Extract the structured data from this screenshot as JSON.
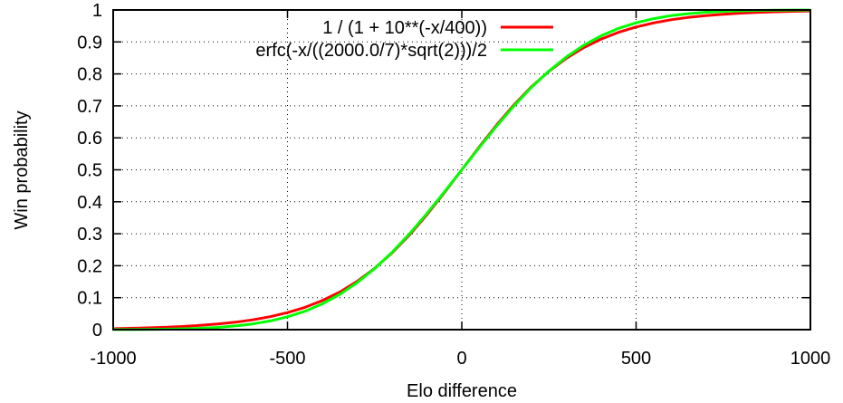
{
  "chart_data": {
    "type": "line",
    "title": "",
    "xlabel": "Elo difference",
    "ylabel": "Win probability",
    "xlim": [
      -1000,
      1000
    ],
    "ylim": [
      0,
      1
    ],
    "grid": true,
    "legend_position": "top-right",
    "x_ticks": [
      "-1000",
      "-500",
      "0",
      "500",
      "1000"
    ],
    "x_tick_values": [
      -1000,
      -500,
      0,
      500,
      1000
    ],
    "y_ticks": [
      "0",
      "0.1",
      "0.2",
      "0.3",
      "0.4",
      "0.5",
      "0.6",
      "0.7",
      "0.8",
      "0.9",
      "1"
    ],
    "y_tick_values": [
      0,
      0.1,
      0.2,
      0.3,
      0.4,
      0.5,
      0.6,
      0.7,
      0.8,
      0.9,
      1
    ],
    "x": [
      -1000,
      -950,
      -900,
      -850,
      -800,
      -750,
      -700,
      -650,
      -600,
      -550,
      -500,
      -450,
      -400,
      -350,
      -300,
      -250,
      -200,
      -150,
      -100,
      -50,
      0,
      50,
      100,
      150,
      200,
      250,
      300,
      350,
      400,
      450,
      500,
      550,
      600,
      650,
      700,
      750,
      800,
      850,
      900,
      950,
      1000
    ],
    "series": [
      {
        "name": "1 / (1 + 10**(-x/400))",
        "color": "#ff0000",
        "values": [
          0.0032,
          0.0042,
          0.0056,
          0.0074,
          0.0099,
          0.0132,
          0.0175,
          0.0232,
          0.0307,
          0.0405,
          0.0532,
          0.0698,
          0.0909,
          0.1177,
          0.151,
          0.1917,
          0.2403,
          0.2966,
          0.3599,
          0.4285,
          0.5,
          0.5715,
          0.6401,
          0.7034,
          0.7597,
          0.8083,
          0.849,
          0.8823,
          0.9091,
          0.9302,
          0.9468,
          0.9595,
          0.9693,
          0.9768,
          0.9825,
          0.9868,
          0.9901,
          0.9926,
          0.9944,
          0.9958,
          0.9968
        ]
      },
      {
        "name": "erfc(-x/((2000.0/7)*sqrt(2)))/2",
        "color": "#00ff00",
        "values": [
          0.0002,
          0.0004,
          0.0008,
          0.0015,
          0.0026,
          0.0043,
          0.0071,
          0.0115,
          0.0179,
          0.0271,
          0.0401,
          0.0576,
          0.0808,
          0.1103,
          0.1469,
          0.1908,
          0.242,
          0.2998,
          0.3632,
          0.4305,
          0.5,
          0.5695,
          0.6368,
          0.7002,
          0.758,
          0.8092,
          0.8531,
          0.8897,
          0.9192,
          0.9424,
          0.9599,
          0.9729,
          0.9821,
          0.9885,
          0.9929,
          0.9957,
          0.9974,
          0.9985,
          0.9992,
          0.9996,
          0.9998
        ]
      }
    ]
  }
}
